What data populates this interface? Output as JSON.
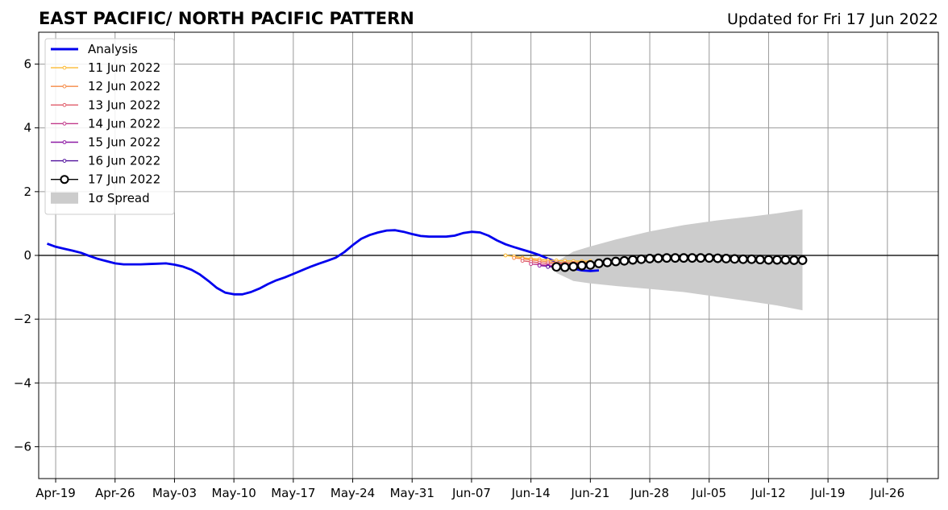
{
  "title": "EAST PACIFIC/ NORTH PACIFIC PATTERN",
  "updated": "Updated for Fri 17 Jun 2022",
  "chart_data": {
    "type": "line",
    "title": "EAST PACIFIC/ NORTH PACIFIC PATTERN",
    "subtitle": "Updated for Fri 17 Jun 2022",
    "xlim": [
      "2022-04-17",
      "2022-08-01"
    ],
    "ylim": [
      -7,
      7
    ],
    "x_ticks": [
      {
        "date": "2022-04-19",
        "label": "Apr-19"
      },
      {
        "date": "2022-04-26",
        "label": "Apr-26"
      },
      {
        "date": "2022-05-03",
        "label": "May-03"
      },
      {
        "date": "2022-05-10",
        "label": "May-10"
      },
      {
        "date": "2022-05-17",
        "label": "May-17"
      },
      {
        "date": "2022-05-24",
        "label": "May-24"
      },
      {
        "date": "2022-05-31",
        "label": "May-31"
      },
      {
        "date": "2022-06-07",
        "label": "Jun-07"
      },
      {
        "date": "2022-06-14",
        "label": "Jun-14"
      },
      {
        "date": "2022-06-21",
        "label": "Jun-21"
      },
      {
        "date": "2022-06-28",
        "label": "Jun-28"
      },
      {
        "date": "2022-07-05",
        "label": "Jul-05"
      },
      {
        "date": "2022-07-12",
        "label": "Jul-12"
      },
      {
        "date": "2022-07-19",
        "label": "Jul-19"
      },
      {
        "date": "2022-07-26",
        "label": "Jul-26"
      }
    ],
    "y_ticks": [
      {
        "value": -6,
        "label": "−6"
      },
      {
        "value": -4,
        "label": "−4"
      },
      {
        "value": -2,
        "label": "−2"
      },
      {
        "value": 0,
        "label": "0"
      },
      {
        "value": 2,
        "label": "2"
      },
      {
        "value": 4,
        "label": "4"
      },
      {
        "value": 6,
        "label": "6"
      }
    ],
    "grid": true,
    "zero_line": true,
    "legend_position": "top-left",
    "series": [
      {
        "name": "Analysis",
        "color": "#0000ee",
        "marker": "none",
        "points": [
          [
            "2022-04-18",
            0.37
          ],
          [
            "2022-04-19",
            0.27
          ],
          [
            "2022-04-20",
            0.21
          ],
          [
            "2022-04-21",
            0.15
          ],
          [
            "2022-04-22",
            0.08
          ],
          [
            "2022-04-23",
            -0.02
          ],
          [
            "2022-04-24",
            -0.11
          ],
          [
            "2022-04-25",
            -0.18
          ],
          [
            "2022-04-26",
            -0.25
          ],
          [
            "2022-04-27",
            -0.28
          ],
          [
            "2022-04-28",
            -0.28
          ],
          [
            "2022-04-29",
            -0.28
          ],
          [
            "2022-04-30",
            -0.27
          ],
          [
            "2022-05-01",
            -0.26
          ],
          [
            "2022-05-02",
            -0.25
          ],
          [
            "2022-05-03",
            -0.29
          ],
          [
            "2022-05-04",
            -0.35
          ],
          [
            "2022-05-05",
            -0.45
          ],
          [
            "2022-05-06",
            -0.6
          ],
          [
            "2022-05-07",
            -0.8
          ],
          [
            "2022-05-08",
            -1.02
          ],
          [
            "2022-05-09",
            -1.17
          ],
          [
            "2022-05-10",
            -1.22
          ],
          [
            "2022-05-11",
            -1.22
          ],
          [
            "2022-05-12",
            -1.15
          ],
          [
            "2022-05-13",
            -1.04
          ],
          [
            "2022-05-14",
            -0.9
          ],
          [
            "2022-05-15",
            -0.78
          ],
          [
            "2022-05-16",
            -0.69
          ],
          [
            "2022-05-17",
            -0.58
          ],
          [
            "2022-05-18",
            -0.47
          ],
          [
            "2022-05-19",
            -0.36
          ],
          [
            "2022-05-20",
            -0.26
          ],
          [
            "2022-05-21",
            -0.17
          ],
          [
            "2022-05-22",
            -0.07
          ],
          [
            "2022-05-23",
            0.1
          ],
          [
            "2022-05-24",
            0.32
          ],
          [
            "2022-05-25",
            0.52
          ],
          [
            "2022-05-26",
            0.64
          ],
          [
            "2022-05-27",
            0.72
          ],
          [
            "2022-05-28",
            0.78
          ],
          [
            "2022-05-29",
            0.79
          ],
          [
            "2022-05-30",
            0.74
          ],
          [
            "2022-05-31",
            0.67
          ],
          [
            "2022-06-01",
            0.61
          ],
          [
            "2022-06-02",
            0.59
          ],
          [
            "2022-06-03",
            0.59
          ],
          [
            "2022-06-04",
            0.59
          ],
          [
            "2022-06-05",
            0.62
          ],
          [
            "2022-06-06",
            0.7
          ],
          [
            "2022-06-07",
            0.74
          ],
          [
            "2022-06-08",
            0.72
          ],
          [
            "2022-06-09",
            0.62
          ],
          [
            "2022-06-10",
            0.47
          ],
          [
            "2022-06-11",
            0.35
          ],
          [
            "2022-06-12",
            0.26
          ],
          [
            "2022-06-13",
            0.18
          ],
          [
            "2022-06-14",
            0.1
          ],
          [
            "2022-06-15",
            0.01
          ],
          [
            "2022-06-16",
            -0.1
          ],
          [
            "2022-06-17",
            -0.2
          ],
          [
            "2022-06-18",
            -0.3
          ],
          [
            "2022-06-19",
            -0.41
          ],
          [
            "2022-06-20",
            -0.47
          ],
          [
            "2022-06-21",
            -0.49
          ],
          [
            "2022-06-22",
            -0.47
          ]
        ]
      },
      {
        "name": "11 Jun 2022",
        "color": "#fcba32",
        "marker": "small",
        "points": [
          [
            "2022-06-11",
            0.0
          ],
          [
            "2022-06-12",
            -0.03
          ],
          [
            "2022-06-13",
            -0.07
          ],
          [
            "2022-06-14",
            -0.1
          ],
          [
            "2022-06-15",
            -0.12
          ],
          [
            "2022-06-16",
            -0.15
          ],
          [
            "2022-06-17",
            -0.16
          ],
          [
            "2022-06-18",
            -0.17
          ],
          [
            "2022-06-19",
            -0.18
          ],
          [
            "2022-06-20",
            -0.18
          ],
          [
            "2022-06-21",
            -0.18
          ]
        ]
      },
      {
        "name": "12 Jun 2022",
        "color": "#f58a46",
        "marker": "small",
        "points": [
          [
            "2022-06-12",
            -0.08
          ],
          [
            "2022-06-13",
            -0.1
          ],
          [
            "2022-06-14",
            -0.14
          ],
          [
            "2022-06-15",
            -0.17
          ],
          [
            "2022-06-16",
            -0.2
          ],
          [
            "2022-06-17",
            -0.22
          ],
          [
            "2022-06-18",
            -0.23
          ],
          [
            "2022-06-19",
            -0.23
          ],
          [
            "2022-06-20",
            -0.22
          ],
          [
            "2022-06-21",
            -0.21
          ]
        ]
      },
      {
        "name": "13 Jun 2022",
        "color": "#e05c6a",
        "marker": "small",
        "points": [
          [
            "2022-06-13",
            -0.17
          ],
          [
            "2022-06-14",
            -0.2
          ],
          [
            "2022-06-15",
            -0.23
          ],
          [
            "2022-06-16",
            -0.25
          ],
          [
            "2022-06-17",
            -0.26
          ],
          [
            "2022-06-18",
            -0.26
          ],
          [
            "2022-06-19",
            -0.25
          ],
          [
            "2022-06-20",
            -0.24
          ]
        ]
      },
      {
        "name": "14 Jun 2022",
        "color": "#c23b8c",
        "marker": "small",
        "points": [
          [
            "2022-06-14",
            -0.27
          ],
          [
            "2022-06-15",
            -0.29
          ],
          [
            "2022-06-16",
            -0.31
          ],
          [
            "2022-06-17",
            -0.32
          ],
          [
            "2022-06-18",
            -0.32
          ],
          [
            "2022-06-19",
            -0.31
          ]
        ]
      },
      {
        "name": "15 Jun 2022",
        "color": "#8e1aa6",
        "marker": "small",
        "points": [
          [
            "2022-06-15",
            -0.32
          ],
          [
            "2022-06-16",
            -0.34
          ],
          [
            "2022-06-17",
            -0.35
          ],
          [
            "2022-06-18",
            -0.35
          ],
          [
            "2022-06-19",
            -0.34
          ]
        ]
      },
      {
        "name": "16 Jun 2022",
        "color": "#50109c",
        "marker": "small",
        "points": [
          [
            "2022-06-16",
            -0.36
          ],
          [
            "2022-06-17",
            -0.37
          ],
          [
            "2022-06-18",
            -0.37
          ],
          [
            "2022-06-19",
            -0.35
          ]
        ]
      },
      {
        "name": "17 Jun 2022",
        "color": "#000000",
        "marker": "circle",
        "points": [
          [
            "2022-06-17",
            -0.36
          ],
          [
            "2022-06-18",
            -0.37
          ],
          [
            "2022-06-19",
            -0.35
          ],
          [
            "2022-06-20",
            -0.32
          ],
          [
            "2022-06-21",
            -0.3
          ],
          [
            "2022-06-22",
            -0.25
          ],
          [
            "2022-06-23",
            -0.22
          ],
          [
            "2022-06-24",
            -0.19
          ],
          [
            "2022-06-25",
            -0.17
          ],
          [
            "2022-06-26",
            -0.14
          ],
          [
            "2022-06-27",
            -0.12
          ],
          [
            "2022-06-28",
            -0.1
          ],
          [
            "2022-06-29",
            -0.09
          ],
          [
            "2022-06-30",
            -0.08
          ],
          [
            "2022-07-01",
            -0.08
          ],
          [
            "2022-07-02",
            -0.08
          ],
          [
            "2022-07-03",
            -0.08
          ],
          [
            "2022-07-04",
            -0.08
          ],
          [
            "2022-07-05",
            -0.08
          ],
          [
            "2022-07-06",
            -0.09
          ],
          [
            "2022-07-07",
            -0.1
          ],
          [
            "2022-07-08",
            -0.11
          ],
          [
            "2022-07-09",
            -0.12
          ],
          [
            "2022-07-10",
            -0.12
          ],
          [
            "2022-07-11",
            -0.13
          ],
          [
            "2022-07-12",
            -0.14
          ],
          [
            "2022-07-13",
            -0.14
          ],
          [
            "2022-07-14",
            -0.14
          ],
          [
            "2022-07-15",
            -0.15
          ],
          [
            "2022-07-16",
            -0.15
          ]
        ]
      }
    ],
    "spread": {
      "name": "1σ Spread",
      "color": "#cccccc",
      "points": [
        [
          "2022-06-17",
          -0.55,
          -0.2
        ],
        [
          "2022-06-19",
          -0.8,
          0.12
        ],
        [
          "2022-06-21",
          -0.88,
          0.28
        ],
        [
          "2022-06-24",
          -0.96,
          0.5
        ],
        [
          "2022-06-28",
          -1.05,
          0.75
        ],
        [
          "2022-07-02",
          -1.15,
          0.95
        ],
        [
          "2022-07-06",
          -1.3,
          1.1
        ],
        [
          "2022-07-10",
          -1.45,
          1.22
        ],
        [
          "2022-07-13",
          -1.57,
          1.32
        ],
        [
          "2022-07-16",
          -1.72,
          1.44
        ]
      ]
    },
    "legend": [
      {
        "label": "Analysis",
        "color": "#0000ee",
        "kind": "thick-line"
      },
      {
        "label": "11 Jun 2022",
        "color": "#fcba32",
        "kind": "line-dot"
      },
      {
        "label": "12 Jun 2022",
        "color": "#f58a46",
        "kind": "line-dot"
      },
      {
        "label": "13 Jun 2022",
        "color": "#e05c6a",
        "kind": "line-dot"
      },
      {
        "label": "14 Jun 2022",
        "color": "#c23b8c",
        "kind": "line-dot"
      },
      {
        "label": "15 Jun 2022",
        "color": "#8e1aa6",
        "kind": "line-dot"
      },
      {
        "label": "16 Jun 2022",
        "color": "#50109c",
        "kind": "line-dot"
      },
      {
        "label": "17 Jun 2022",
        "color": "#000000",
        "kind": "line-circle"
      },
      {
        "label": "1σ Spread",
        "color": "#cccccc",
        "kind": "patch"
      }
    ]
  }
}
